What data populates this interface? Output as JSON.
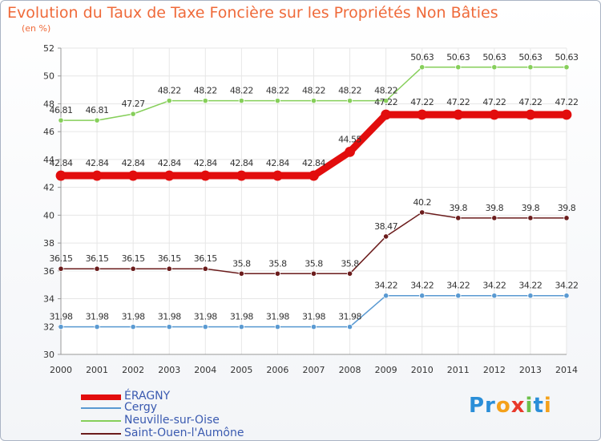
{
  "chart_data": {
    "type": "line",
    "title": "Evolution du Taux de Taxe Foncière sur les Propriétés Non Bâties",
    "ylabel": "(en %)",
    "xlabel": "",
    "ylim": [
      30,
      52
    ],
    "yticks": [
      "30",
      "32",
      "34",
      "36",
      "38",
      "40",
      "42",
      "44",
      "46",
      "48",
      "50",
      "52"
    ],
    "grid": true,
    "x": [
      "2000",
      "2001",
      "2002",
      "2003",
      "2004",
      "2005",
      "2006",
      "2007",
      "2008",
      "2009",
      "2010",
      "2011",
      "2012",
      "2013",
      "2014"
    ],
    "series": [
      {
        "name": "Saint-Ouen-l'Aumône",
        "color": "#6b1c1c",
        "values": [
          36.15,
          36.15,
          36.15,
          36.15,
          36.15,
          35.8,
          35.8,
          35.8,
          35.8,
          38.47,
          40.2,
          39.8,
          39.8,
          39.8,
          39.8
        ],
        "labels": [
          "36.15",
          "36.15",
          "36.15",
          "36.15",
          "36.15",
          "35.8",
          "35.8",
          "35.8",
          "35.8",
          "38.47",
          "40.2",
          "39.8",
          "39.8",
          "39.8",
          "39.8"
        ]
      },
      {
        "name": "Cergy",
        "color": "#5a9ad2",
        "values": [
          31.98,
          31.98,
          31.98,
          31.98,
          31.98,
          31.98,
          31.98,
          31.98,
          31.98,
          34.22,
          34.22,
          34.22,
          34.22,
          34.22,
          34.22
        ],
        "labels": [
          "31.98",
          "31.98",
          "31.98",
          "31.98",
          "31.98",
          "31.98",
          "31.98",
          "31.98",
          "31.98",
          "34.22",
          "34.22",
          "34.22",
          "34.22",
          "34.22",
          "34.22"
        ]
      },
      {
        "name": "Neuville-sur-Oise",
        "color": "#86cf5a",
        "values": [
          46.81,
          46.81,
          47.27,
          48.22,
          48.22,
          48.22,
          48.22,
          48.22,
          48.22,
          48.22,
          50.63,
          50.63,
          50.63,
          50.63,
          50.63
        ],
        "labels": [
          "46.81",
          "46.81",
          "47.27",
          "48.22",
          "48.22",
          "48.22",
          "48.22",
          "48.22",
          "48.22",
          "48.22",
          "50.63",
          "50.63",
          "50.63",
          "50.63",
          "50.63"
        ]
      },
      {
        "name": "ÉRAGNY",
        "color": "#e20d0d",
        "values": [
          42.84,
          42.84,
          42.84,
          42.84,
          42.84,
          42.84,
          42.84,
          42.84,
          44.55,
          47.22,
          47.22,
          47.22,
          47.22,
          47.22,
          47.22
        ],
        "labels": [
          "42.84",
          "42.84",
          "42.84",
          "42.84",
          "42.84",
          "42.84",
          "42.84",
          "42.84",
          "44.55",
          "47.22",
          "47.22",
          "47.22",
          "47.22",
          "47.22",
          "47.22"
        ]
      }
    ],
    "legend": [
      "ÉRAGNY",
      "Cergy",
      "Neuville-sur-Oise",
      "Saint-Ouen-l'Aumône"
    ],
    "legend_position": "bottom-left"
  },
  "logo": {
    "p": "Pr",
    "o": "o",
    "x": "x",
    "i": "i",
    "t": "t",
    "i2": "i"
  }
}
